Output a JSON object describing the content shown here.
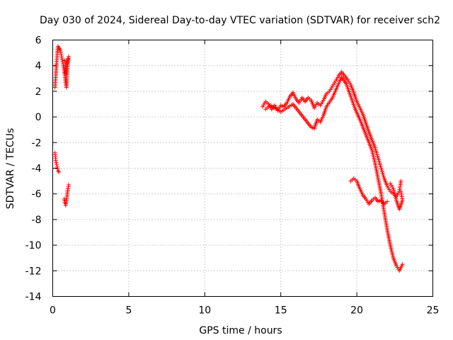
{
  "chart_data": {
    "type": "scatter",
    "title": "Day 030 of 2024, Sidereal Day-to-day VTEC variation (SDTVAR) for receiver sch2",
    "xlabel": "GPS time / hours",
    "ylabel": "SDTVAR / TECUs",
    "xlim": [
      0,
      25
    ],
    "ylim": [
      -14,
      6
    ],
    "x_ticks": [
      0,
      5,
      10,
      15,
      20,
      25
    ],
    "x_tick_labels": [
      "0",
      "5",
      "10",
      "15",
      "20",
      "25"
    ],
    "y_ticks": [
      6,
      4,
      2,
      0,
      -2,
      -4,
      -6,
      -8,
      -10,
      -12,
      -14
    ],
    "y_tick_labels": [
      "6",
      "4",
      "2",
      "0",
      "-2",
      "-4",
      "-6",
      "-8",
      "-10",
      "-12",
      "-14"
    ],
    "grid": true,
    "marker": "+",
    "series_color": "#ff0000",
    "series": [
      {
        "name": "sch2",
        "segments": [
          [
            [
              0.15,
              2.3
            ],
            [
              0.2,
              3.2
            ],
            [
              0.25,
              4.2
            ],
            [
              0.3,
              5.0
            ],
            [
              0.35,
              5.5
            ],
            [
              0.4,
              5.4
            ],
            [
              0.45,
              5.3
            ],
            [
              0.5,
              5.2
            ],
            [
              0.55,
              4.9
            ],
            [
              0.6,
              4.6
            ],
            [
              0.65,
              4.3
            ],
            [
              0.7,
              4.0
            ],
            [
              0.75,
              3.6
            ],
            [
              0.8,
              3.2
            ],
            [
              0.85,
              2.7
            ],
            [
              0.9,
              2.3
            ],
            [
              0.95,
              3.8
            ],
            [
              1.0,
              4.5
            ],
            [
              1.05,
              4.7
            ],
            [
              0.85,
              3.4
            ],
            [
              0.8,
              4.4
            ]
          ],
          [
            [
              0.15,
              -2.8
            ],
            [
              0.2,
              -3.4
            ],
            [
              0.25,
              -3.7
            ],
            [
              0.3,
              -3.9
            ],
            [
              0.35,
              -4.2
            ],
            [
              0.4,
              -4.3
            ]
          ],
          [
            [
              0.75,
              -6.4
            ],
            [
              0.8,
              -6.7
            ],
            [
              0.85,
              -6.9
            ],
            [
              0.9,
              -6.5
            ],
            [
              0.95,
              -6.1
            ],
            [
              1.0,
              -5.6
            ],
            [
              1.05,
              -5.3
            ]
          ],
          [
            [
              13.8,
              0.8
            ],
            [
              14.0,
              1.2
            ],
            [
              14.2,
              1.0
            ],
            [
              14.4,
              0.6
            ],
            [
              14.6,
              0.9
            ],
            [
              14.8,
              0.5
            ],
            [
              15.0,
              0.9
            ],
            [
              15.2,
              0.8
            ],
            [
              15.4,
              1.1
            ],
            [
              15.6,
              1.6
            ],
            [
              15.8,
              1.9
            ],
            [
              16.0,
              1.4
            ],
            [
              16.2,
              1.1
            ],
            [
              16.4,
              1.5
            ],
            [
              16.6,
              1.2
            ],
            [
              16.8,
              1.5
            ],
            [
              17.0,
              1.3
            ],
            [
              17.2,
              0.7
            ],
            [
              17.4,
              1.1
            ],
            [
              17.6,
              0.9
            ],
            [
              17.8,
              1.3
            ],
            [
              18.0,
              1.8
            ],
            [
              18.2,
              2.0
            ],
            [
              18.4,
              2.4
            ],
            [
              18.6,
              2.8
            ],
            [
              18.8,
              3.2
            ],
            [
              19.0,
              3.5
            ],
            [
              19.2,
              3.2
            ],
            [
              19.4,
              2.9
            ],
            [
              19.6,
              2.5
            ],
            [
              19.8,
              1.9
            ],
            [
              20.0,
              1.2
            ],
            [
              20.2,
              0.7
            ],
            [
              20.4,
              0.2
            ],
            [
              20.6,
              -0.5
            ],
            [
              20.8,
              -1.2
            ],
            [
              21.0,
              -1.8
            ],
            [
              21.2,
              -2.4
            ],
            [
              21.4,
              -3.2
            ],
            [
              21.6,
              -4.0
            ],
            [
              21.8,
              -4.8
            ],
            [
              22.0,
              -5.4
            ],
            [
              22.2,
              -5.8
            ],
            [
              22.4,
              -6.0
            ],
            [
              22.6,
              -6.2
            ],
            [
              22.8,
              -5.8
            ],
            [
              22.9,
              -5.0
            ]
          ],
          [
            [
              14.0,
              0.6
            ],
            [
              14.3,
              0.9
            ],
            [
              14.6,
              0.7
            ],
            [
              15.0,
              0.4
            ],
            [
              15.4,
              0.7
            ],
            [
              15.8,
              1.0
            ],
            [
              16.2,
              0.4
            ],
            [
              16.6,
              -0.2
            ],
            [
              17.0,
              -0.8
            ],
            [
              17.2,
              -0.9
            ],
            [
              17.4,
              -0.2
            ],
            [
              17.6,
              -0.4
            ],
            [
              17.8,
              0.1
            ],
            [
              18.0,
              0.8
            ],
            [
              18.4,
              1.5
            ],
            [
              18.8,
              2.6
            ],
            [
              19.0,
              3.1
            ],
            [
              19.3,
              2.6
            ],
            [
              19.6,
              1.6
            ],
            [
              19.9,
              0.6
            ],
            [
              20.2,
              -0.2
            ],
            [
              20.4,
              -0.8
            ],
            [
              20.6,
              -1.4
            ],
            [
              20.8,
              -2.0
            ],
            [
              21.0,
              -2.6
            ],
            [
              21.2,
              -3.6
            ],
            [
              21.4,
              -4.8
            ],
            [
              21.6,
              -6.0
            ],
            [
              21.8,
              -7.4
            ],
            [
              22.0,
              -8.8
            ],
            [
              22.2,
              -10.0
            ],
            [
              22.4,
              -11.0
            ],
            [
              22.6,
              -11.6
            ],
            [
              22.8,
              -12.0
            ],
            [
              23.0,
              -11.5
            ]
          ],
          [
            [
              19.6,
              -5.0
            ],
            [
              19.8,
              -4.8
            ],
            [
              20.0,
              -5.0
            ],
            [
              20.2,
              -5.6
            ],
            [
              20.4,
              -6.1
            ],
            [
              20.6,
              -6.4
            ],
            [
              20.8,
              -6.8
            ],
            [
              21.0,
              -6.5
            ],
            [
              21.2,
              -6.3
            ],
            [
              21.4,
              -6.6
            ],
            [
              21.6,
              -6.5
            ],
            [
              21.8,
              -6.8
            ],
            [
              22.0,
              -6.6
            ]
          ],
          [
            [
              22.2,
              -5.2
            ],
            [
              22.4,
              -5.6
            ],
            [
              22.6,
              -6.5
            ],
            [
              22.8,
              -7.2
            ],
            [
              23.0,
              -6.5
            ],
            [
              22.9,
              -5.8
            ]
          ]
        ]
      }
    ]
  }
}
